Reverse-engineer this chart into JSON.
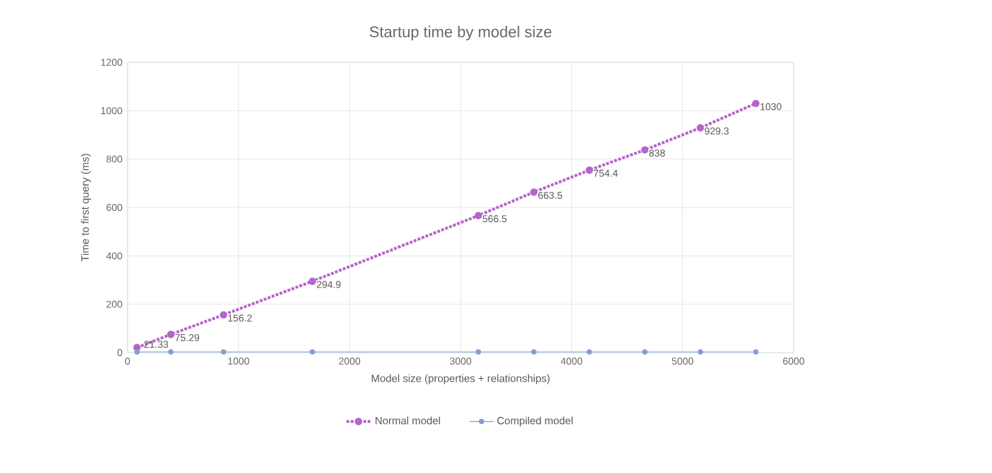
{
  "chart_data": {
    "type": "line",
    "title": "Startup time by model size",
    "xlabel": "Model size (properties + relationships)",
    "ylabel": "Time to first query (ms)",
    "xlim": [
      0,
      6000
    ],
    "xticks": [
      0,
      1000,
      2000,
      3000,
      4000,
      5000,
      6000
    ],
    "ylim": [
      0,
      1200
    ],
    "yticks": [
      0,
      200,
      400,
      600,
      800,
      1000,
      1200
    ],
    "grid": true,
    "legend": "bottom",
    "series": [
      {
        "name": "Normal model",
        "color": "#b565c9",
        "marker": "circle",
        "line_style": "dotted",
        "x": [
          85,
          390,
          865,
          1665,
          3160,
          3660,
          4160,
          4660,
          5160,
          5660
        ],
        "values": [
          21.33,
          75.29,
          156.2,
          294.9,
          566.5,
          663.5,
          754.4,
          838,
          929.3,
          1030
        ],
        "value_labels": [
          "21.33",
          "75.29",
          "156.2",
          "294.9",
          "566.5",
          "663.5",
          "754.4",
          "838",
          "929.3",
          "1030"
        ]
      },
      {
        "name": "Compiled model",
        "color": "#7f9fd8",
        "marker": "circle",
        "line_style": "solid",
        "x": [
          85,
          390,
          865,
          1665,
          3160,
          3660,
          4160,
          4660,
          5160,
          5660
        ],
        "values": [
          3,
          3,
          3,
          3,
          3,
          3,
          3,
          3,
          3,
          3
        ]
      }
    ]
  }
}
